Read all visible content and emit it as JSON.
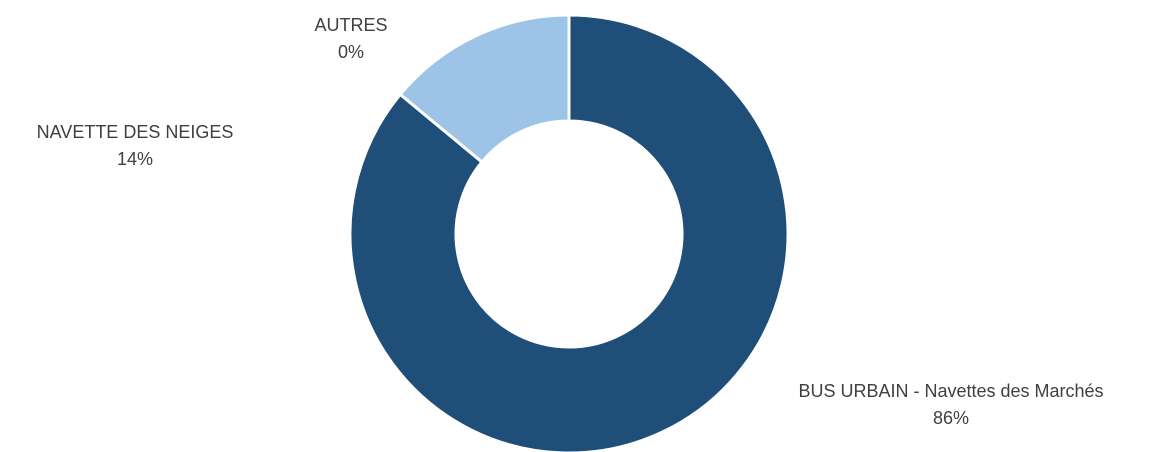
{
  "chart_data": {
    "type": "pie",
    "variant": "donut",
    "title": "",
    "slices": [
      {
        "label": "BUS URBAIN - Navettes des Marchés",
        "value": 86,
        "value_label": "86%",
        "color": "#1f4e79"
      },
      {
        "label": "NAVETTE DES NEIGES",
        "value": 14,
        "value_label": "14%",
        "color": "#9dc3e6"
      },
      {
        "label": "AUTRES",
        "value": 0,
        "value_label": "0%",
        "color": "#bdd7ee"
      }
    ],
    "start_angle": "12 o'clock",
    "direction": "clockwise",
    "legend": "none"
  }
}
